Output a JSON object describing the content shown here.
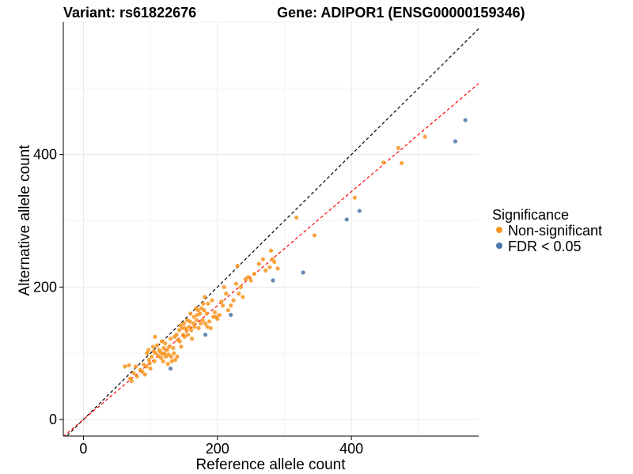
{
  "chart_data": {
    "type": "scatter",
    "title_left": "Variant: rs61822676",
    "title_right": "Gene: ADIPOR1 (ENSG00000159346)",
    "xlabel": "Reference allele count",
    "ylabel": "Alternative allele count",
    "xlim": [
      -30,
      590
    ],
    "ylim": [
      -25,
      600
    ],
    "x_ticks": [
      0,
      200,
      400
    ],
    "y_ticks": [
      0,
      200,
      400
    ],
    "grid": true,
    "legend": {
      "title": "Significance",
      "position": "right",
      "entries": [
        {
          "label": "Non-significant",
          "color": "#F7941D"
        },
        {
          "label": "FDR < 0.05",
          "color": "#4A76A8"
        }
      ]
    },
    "reference_lines": [
      {
        "style": "dashed",
        "color": "#000000",
        "slope": 1,
        "intercept": 0
      },
      {
        "style": "dashed",
        "color": "#FF0000",
        "slope": 0.86,
        "intercept": 0
      }
    ],
    "series": [
      {
        "name": "Non-significant",
        "color": "#F7941D",
        "points": [
          [
            62,
            80
          ],
          [
            68,
            82
          ],
          [
            70,
            62
          ],
          [
            72,
            58
          ],
          [
            75,
            70
          ],
          [
            78,
            80
          ],
          [
            80,
            65
          ],
          [
            85,
            75
          ],
          [
            88,
            72
          ],
          [
            90,
            83
          ],
          [
            92,
            68
          ],
          [
            94,
            80
          ],
          [
            95,
            100
          ],
          [
            97,
            105
          ],
          [
            98,
            90
          ],
          [
            99,
            85
          ],
          [
            100,
            77
          ],
          [
            102,
            95
          ],
          [
            104,
            110
          ],
          [
            105,
            103
          ],
          [
            106,
            88
          ],
          [
            107,
            125
          ],
          [
            108,
            100
          ],
          [
            110,
            112
          ],
          [
            112,
            96
          ],
          [
            113,
            105
          ],
          [
            115,
            102
          ],
          [
            116,
            93
          ],
          [
            117,
            118
          ],
          [
            118,
            99
          ],
          [
            119,
            88
          ],
          [
            120,
            108
          ],
          [
            121,
            100
          ],
          [
            122,
            115
          ],
          [
            123,
            95
          ],
          [
            125,
            105
          ],
          [
            126,
            84
          ],
          [
            127,
            98
          ],
          [
            128,
            110
          ],
          [
            130,
            122
          ],
          [
            131,
            95
          ],
          [
            132,
            88
          ],
          [
            134,
            108
          ],
          [
            135,
            100
          ],
          [
            136,
            125
          ],
          [
            137,
            90
          ],
          [
            139,
            128
          ],
          [
            140,
            95
          ],
          [
            141,
            120
          ],
          [
            143,
            135
          ],
          [
            144,
            118
          ],
          [
            145,
            142
          ],
          [
            146,
            110
          ],
          [
            148,
            138
          ],
          [
            149,
            128
          ],
          [
            150,
            145
          ],
          [
            151,
            125
          ],
          [
            152,
            138
          ],
          [
            154,
            135
          ],
          [
            155,
            150
          ],
          [
            156,
            128
          ],
          [
            158,
            140
          ],
          [
            159,
            148
          ],
          [
            160,
            160
          ],
          [
            161,
            135
          ],
          [
            162,
            122
          ],
          [
            164,
            145
          ],
          [
            165,
            155
          ],
          [
            166,
            140
          ],
          [
            168,
            168
          ],
          [
            169,
            150
          ],
          [
            170,
            158
          ],
          [
            171,
            165
          ],
          [
            172,
            138
          ],
          [
            174,
            160
          ],
          [
            175,
            145
          ],
          [
            176,
            168
          ],
          [
            178,
            150
          ],
          [
            179,
            175
          ],
          [
            180,
            165
          ],
          [
            181,
            185
          ],
          [
            182,
            145
          ],
          [
            184,
            160
          ],
          [
            185,
            140
          ],
          [
            186,
            175
          ],
          [
            188,
            148
          ],
          [
            190,
            138
          ],
          [
            192,
            180
          ],
          [
            194,
            155
          ],
          [
            196,
            162
          ],
          [
            198,
            155
          ],
          [
            200,
            152
          ],
          [
            203,
            158
          ],
          [
            206,
            178
          ],
          [
            208,
            172
          ],
          [
            210,
            200
          ],
          [
            213,
            190
          ],
          [
            216,
            165
          ],
          [
            220,
            172
          ],
          [
            224,
            180
          ],
          [
            228,
            205
          ],
          [
            230,
            232
          ],
          [
            232,
            190
          ],
          [
            235,
            200
          ],
          [
            238,
            185
          ],
          [
            242,
            212
          ],
          [
            246,
            215
          ],
          [
            250,
            210
          ],
          [
            255,
            220
          ],
          [
            262,
            235
          ],
          [
            268,
            242
          ],
          [
            272,
            225
          ],
          [
            278,
            230
          ],
          [
            280,
            255
          ],
          [
            282,
            242
          ],
          [
            285,
            238
          ],
          [
            290,
            228
          ],
          [
            318,
            305
          ],
          [
            345,
            278
          ],
          [
            405,
            335
          ],
          [
            448,
            388
          ],
          [
            470,
            410
          ],
          [
            475,
            387
          ],
          [
            510,
            427
          ]
        ]
      },
      {
        "name": "FDR < 0.05",
        "color": "#4A76A8",
        "points": [
          [
            130,
            77
          ],
          [
            182,
            128
          ],
          [
            220,
            158
          ],
          [
            283,
            210
          ],
          [
            328,
            222
          ],
          [
            393,
            302
          ],
          [
            412,
            315
          ],
          [
            555,
            420
          ],
          [
            570,
            452
          ]
        ]
      }
    ]
  }
}
